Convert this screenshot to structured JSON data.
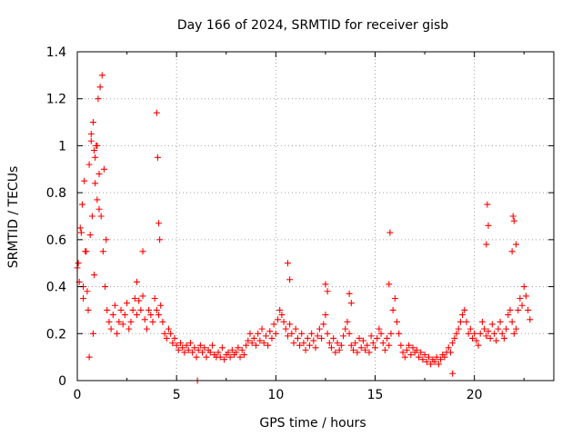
{
  "chart_data": {
    "type": "scatter",
    "title": "Day 166 of 2024, SRMTID for receiver gisb",
    "xlabel": "GPS time / hours",
    "ylabel": "SRMTID / TECUs",
    "xlim": [
      0,
      24
    ],
    "ylim": [
      0,
      1.4
    ],
    "xticks": [
      0,
      5,
      10,
      15,
      20
    ],
    "yticks": [
      0,
      0.2,
      0.4,
      0.6,
      0.8,
      1,
      1.2,
      1.4
    ],
    "xtick_labels": [
      "0",
      "5",
      "10",
      "15",
      "20"
    ],
    "ytick_labels": [
      "0",
      "0.2",
      "0.4",
      "0.6",
      "0.8",
      "1",
      "1.2",
      "1.4"
    ],
    "grid": true,
    "marker": "+",
    "series": [
      {
        "name": "SRMTID",
        "color": "#ff0000",
        "x": [
          0.0,
          0.1,
          0.2,
          0.3,
          0.4,
          0.5,
          0.6,
          0.7,
          0.8,
          0.9,
          1.0,
          1.1,
          1.2,
          1.3,
          1.4,
          1.5,
          1.6,
          1.7,
          1.8,
          1.9,
          2.0,
          2.1,
          2.2,
          2.3,
          2.4,
          2.5,
          2.6,
          2.7,
          2.8,
          2.9,
          3.0,
          3.1,
          3.2,
          3.3,
          3.4,
          3.5,
          3.6,
          3.7,
          3.8,
          3.9,
          4.0,
          4.1,
          4.2,
          4.3,
          4.4,
          4.5,
          4.6,
          4.7,
          4.8,
          4.9,
          5.0,
          5.1,
          5.2,
          5.3,
          5.4,
          5.5,
          5.6,
          5.7,
          5.8,
          5.9,
          6.0,
          6.1,
          6.2,
          6.3,
          6.4,
          6.5,
          6.6,
          6.7,
          6.8,
          6.9,
          7.0,
          7.1,
          7.2,
          7.3,
          7.4,
          7.5,
          7.6,
          7.7,
          7.8,
          7.9,
          8.0,
          8.1,
          8.2,
          8.3,
          8.4,
          8.5,
          8.6,
          8.7,
          8.8,
          8.9,
          9.0,
          9.1,
          9.2,
          9.3,
          9.4,
          9.5,
          9.6,
          9.7,
          9.8,
          9.9,
          10.0,
          10.1,
          10.2,
          10.3,
          10.4,
          10.5,
          10.6,
          10.7,
          10.8,
          10.9,
          11.0,
          11.1,
          11.2,
          11.3,
          11.4,
          11.5,
          11.6,
          11.7,
          11.8,
          11.9,
          12.0,
          12.1,
          12.2,
          12.3,
          12.4,
          12.5,
          12.6,
          12.7,
          12.8,
          12.9,
          13.0,
          13.1,
          13.2,
          13.3,
          13.4,
          13.5,
          13.6,
          13.7,
          13.8,
          13.9,
          14.0,
          14.1,
          14.2,
          14.3,
          14.4,
          14.5,
          14.6,
          14.7,
          14.8,
          14.9,
          15.0,
          15.1,
          15.2,
          15.3,
          15.4,
          15.5,
          15.6,
          15.7,
          15.8,
          15.9,
          16.0,
          16.1,
          16.2,
          16.3,
          16.4,
          16.5,
          16.6,
          16.7,
          16.8,
          16.9,
          17.0,
          17.1,
          17.2,
          17.3,
          17.4,
          17.5,
          17.6,
          17.7,
          17.8,
          17.9,
          18.0,
          18.1,
          18.2,
          18.3,
          18.4,
          18.5,
          18.6,
          18.7,
          18.8,
          18.9,
          19.0,
          19.1,
          19.2,
          19.3,
          19.4,
          19.5,
          19.6,
          19.7,
          19.8,
          19.9,
          20.0,
          20.1,
          20.2,
          20.3,
          20.4,
          20.5,
          20.6,
          20.7,
          20.8,
          20.9,
          21.0,
          21.1,
          21.2,
          21.3,
          21.4,
          21.5,
          21.6,
          21.7,
          21.8,
          21.9,
          22.0,
          22.1,
          22.2,
          22.3,
          22.4,
          22.5,
          22.6,
          22.7,
          22.8,
          0.05,
          0.15,
          0.25,
          0.35,
          0.45,
          0.55,
          0.65,
          0.75,
          0.85,
          0.95,
          1.05,
          1.15,
          1.25,
          1.35,
          1.45,
          0.3,
          0.6,
          0.8,
          0.9,
          1.0,
          1.1,
          0.7,
          0.85,
          4.0,
          4.05,
          4.1,
          4.15,
          10.6,
          10.7,
          15.7,
          15.75,
          20.6,
          20.65,
          20.7,
          21.9,
          21.95,
          22.0,
          22.1,
          3.0,
          3.3,
          12.5,
          12.6,
          13.7,
          13.8,
          6.05,
          18.9
        ],
        "y": [
          0.48,
          0.42,
          0.63,
          0.4,
          0.55,
          0.38,
          0.92,
          1.02,
          1.1,
          0.95,
          1.0,
          0.88,
          0.7,
          0.55,
          0.4,
          0.3,
          0.25,
          0.22,
          0.28,
          0.32,
          0.2,
          0.25,
          0.3,
          0.24,
          0.28,
          0.33,
          0.22,
          0.25,
          0.3,
          0.35,
          0.28,
          0.34,
          0.3,
          0.36,
          0.26,
          0.22,
          0.3,
          0.28,
          0.25,
          0.35,
          0.3,
          0.28,
          0.32,
          0.25,
          0.2,
          0.18,
          0.22,
          0.2,
          0.16,
          0.18,
          0.15,
          0.13,
          0.16,
          0.14,
          0.12,
          0.15,
          0.13,
          0.16,
          0.12,
          0.14,
          0.1,
          0.13,
          0.15,
          0.12,
          0.14,
          0.1,
          0.13,
          0.12,
          0.15,
          0.11,
          0.1,
          0.12,
          0.1,
          0.14,
          0.09,
          0.11,
          0.12,
          0.1,
          0.13,
          0.11,
          0.12,
          0.14,
          0.1,
          0.13,
          0.11,
          0.15,
          0.17,
          0.2,
          0.16,
          0.18,
          0.15,
          0.2,
          0.17,
          0.22,
          0.16,
          0.19,
          0.15,
          0.21,
          0.18,
          0.24,
          0.2,
          0.26,
          0.3,
          0.28,
          0.25,
          0.22,
          0.19,
          0.24,
          0.2,
          0.16,
          0.22,
          0.18,
          0.15,
          0.2,
          0.16,
          0.13,
          0.18,
          0.15,
          0.2,
          0.17,
          0.14,
          0.19,
          0.22,
          0.18,
          0.24,
          0.28,
          0.2,
          0.16,
          0.14,
          0.18,
          0.12,
          0.16,
          0.13,
          0.15,
          0.19,
          0.22,
          0.25,
          0.2,
          0.15,
          0.13,
          0.16,
          0.12,
          0.18,
          0.14,
          0.17,
          0.13,
          0.15,
          0.12,
          0.19,
          0.16,
          0.14,
          0.18,
          0.22,
          0.2,
          0.16,
          0.13,
          0.18,
          0.15,
          0.2,
          0.3,
          0.35,
          0.25,
          0.2,
          0.15,
          0.12,
          0.1,
          0.13,
          0.15,
          0.11,
          0.14,
          0.12,
          0.13,
          0.1,
          0.12,
          0.09,
          0.11,
          0.08,
          0.1,
          0.07,
          0.09,
          0.08,
          0.1,
          0.07,
          0.09,
          0.11,
          0.1,
          0.12,
          0.14,
          0.12,
          0.16,
          0.18,
          0.2,
          0.22,
          0.25,
          0.28,
          0.3,
          0.25,
          0.2,
          0.22,
          0.18,
          0.2,
          0.17,
          0.15,
          0.2,
          0.25,
          0.22,
          0.19,
          0.21,
          0.18,
          0.24,
          0.2,
          0.17,
          0.22,
          0.25,
          0.2,
          0.18,
          0.22,
          0.28,
          0.3,
          0.25,
          0.2,
          0.22,
          0.3,
          0.35,
          0.32,
          0.4,
          0.36,
          0.3,
          0.26,
          0.5,
          0.65,
          0.75,
          0.85,
          0.55,
          0.3,
          0.62,
          0.7,
          0.45,
          1.0,
          1.2,
          1.25,
          1.3,
          0.9,
          0.6,
          0.35,
          0.1,
          0.2,
          0.84,
          0.77,
          0.73,
          1.05,
          0.98,
          1.14,
          0.95,
          0.67,
          0.6,
          0.5,
          0.43,
          0.41,
          0.63,
          0.58,
          0.75,
          0.66,
          0.55,
          0.7,
          0.68,
          0.58,
          0.42,
          0.55,
          0.41,
          0.38,
          0.37,
          0.33,
          0.0,
          0.03
        ]
      }
    ]
  }
}
